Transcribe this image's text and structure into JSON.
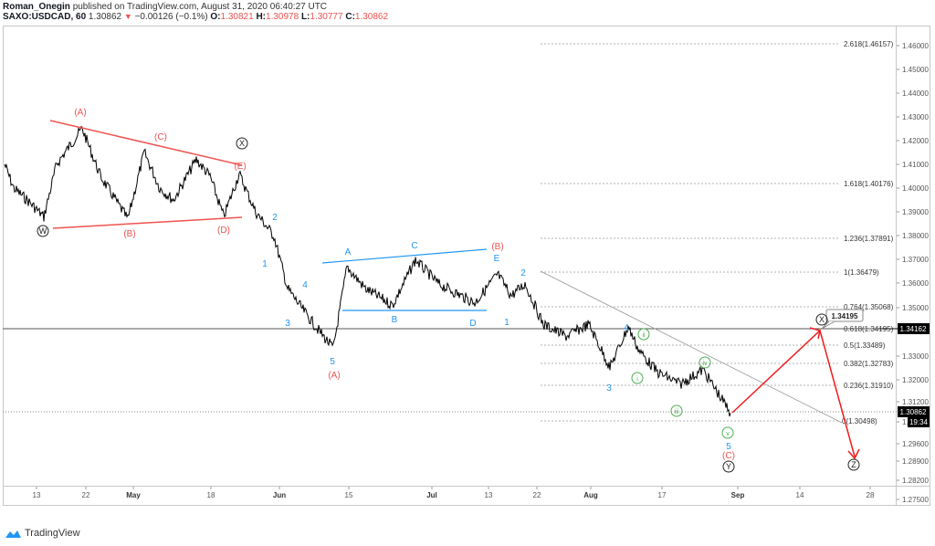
{
  "header": {
    "author": "Roman_Onegin",
    "published_text": "published on TradingView.com, August 31, 2020 06:40:27 UTC",
    "symbol": "SAXO:USDCAD, 60",
    "last": "1.30862",
    "change": "−0.00126 (−0.1%)",
    "o_label": "O:",
    "o": "1.30821",
    "h_label": "H:",
    "h": "1.30978",
    "l_label": "L:",
    "l": "1.30777",
    "c_label": "C:",
    "c": "1.30862"
  },
  "footer": {
    "brand": "TradingView",
    "icon": "tradingview-cloud-icon"
  },
  "colors": {
    "red": "#ef5350",
    "blue": "#2196f3",
    "green": "#4caf50",
    "black": "#000000",
    "grid": "#cccccc"
  },
  "chart_data": {
    "type": "line",
    "title": "SAXO:USDCAD, 60",
    "xlabel": "",
    "ylabel": "",
    "x_ticks": [
      "13",
      "22",
      "May",
      "18",
      "Jun",
      "15",
      "Jul",
      "13",
      "22",
      "Aug",
      "17",
      "Sep",
      "14",
      "28"
    ],
    "y_ticks": [
      "1.46000",
      "1.45000",
      "1.44000",
      "1.43000",
      "1.42000",
      "1.41000",
      "1.40000",
      "1.39000",
      "1.38000",
      "1.37000",
      "1.36000",
      "1.35000",
      "1.34000",
      "1.33000",
      "1.32000",
      "1.31200",
      "1.30400",
      "1.29600",
      "1.28900",
      "1.28200",
      "1.27500"
    ],
    "ylim": [
      1.272,
      1.468
    ],
    "current_price_label": "1.34162",
    "last_price_label": "1.30862",
    "countdown_label": "19:34",
    "callout_label": "1.34195",
    "fib_levels": [
      {
        "label": "2.618(1.46157)",
        "price": 1.46157
      },
      {
        "label": "1.618(1.40176)",
        "price": 1.40176
      },
      {
        "label": "1.236(1.37891)",
        "price": 1.37891
      },
      {
        "label": "1(1.36479)",
        "price": 1.36479
      },
      {
        "label": "0.764(1.35068)",
        "price": 1.35068
      },
      {
        "label": "0.618(1.34195)",
        "price": 1.34195
      },
      {
        "label": "0.5(1.33489)",
        "price": 1.33489
      },
      {
        "label": "0.382(1.32783)",
        "price": 1.32783
      },
      {
        "label": "0.236(1.31910)",
        "price": 1.3191
      },
      {
        "label": "0(1.30498)",
        "price": 1.30498
      }
    ],
    "price_path_approx": [
      {
        "x": 5,
        "y": 1.41
      },
      {
        "x": 15,
        "y": 1.4
      },
      {
        "x": 30,
        "y": 1.395
      },
      {
        "x": 48,
        "y": 1.388
      },
      {
        "x": 62,
        "y": 1.41
      },
      {
        "x": 90,
        "y": 1.425
      },
      {
        "x": 110,
        "y": 1.405
      },
      {
        "x": 140,
        "y": 1.387
      },
      {
        "x": 158,
        "y": 1.415
      },
      {
        "x": 175,
        "y": 1.4
      },
      {
        "x": 190,
        "y": 1.395
      },
      {
        "x": 215,
        "y": 1.412
      },
      {
        "x": 230,
        "y": 1.405
      },
      {
        "x": 245,
        "y": 1.388
      },
      {
        "x": 262,
        "y": 1.406
      },
      {
        "x": 280,
        "y": 1.39
      },
      {
        "x": 300,
        "y": 1.38
      },
      {
        "x": 315,
        "y": 1.358
      },
      {
        "x": 330,
        "y": 1.35
      },
      {
        "x": 350,
        "y": 1.34
      },
      {
        "x": 365,
        "y": 1.333
      },
      {
        "x": 380,
        "y": 1.367
      },
      {
        "x": 400,
        "y": 1.358
      },
      {
        "x": 430,
        "y": 1.351
      },
      {
        "x": 455,
        "y": 1.37
      },
      {
        "x": 480,
        "y": 1.36
      },
      {
        "x": 520,
        "y": 1.352
      },
      {
        "x": 545,
        "y": 1.364
      },
      {
        "x": 560,
        "y": 1.355
      },
      {
        "x": 575,
        "y": 1.36
      },
      {
        "x": 595,
        "y": 1.343
      },
      {
        "x": 620,
        "y": 1.338
      },
      {
        "x": 645,
        "y": 1.343
      },
      {
        "x": 668,
        "y": 1.325
      },
      {
        "x": 688,
        "y": 1.342
      },
      {
        "x": 700,
        "y": 1.332
      },
      {
        "x": 720,
        "y": 1.323
      },
      {
        "x": 745,
        "y": 1.318
      },
      {
        "x": 770,
        "y": 1.324
      },
      {
        "x": 800,
        "y": 1.306
      }
    ],
    "annotations": [
      {
        "text": "(A)",
        "color": "red"
      },
      {
        "text": "(B)",
        "color": "red"
      },
      {
        "text": "(C)",
        "color": "red"
      },
      {
        "text": "(D)",
        "color": "red"
      },
      {
        "text": "(E)",
        "color": "red"
      },
      {
        "text": "W",
        "color": "black",
        "circled": true
      },
      {
        "text": "X",
        "color": "black",
        "circled": true
      },
      {
        "text": "Y",
        "color": "black",
        "circled": true
      },
      {
        "text": "Z",
        "color": "black",
        "circled": true
      },
      {
        "text": "1",
        "color": "blue"
      },
      {
        "text": "2",
        "color": "blue"
      },
      {
        "text": "3",
        "color": "blue"
      },
      {
        "text": "4",
        "color": "blue"
      },
      {
        "text": "5",
        "color": "blue"
      },
      {
        "text": "A",
        "color": "blue"
      },
      {
        "text": "B",
        "color": "blue"
      },
      {
        "text": "C",
        "color": "blue"
      },
      {
        "text": "D",
        "color": "blue"
      },
      {
        "text": "E",
        "color": "blue"
      },
      {
        "text": "i",
        "color": "green",
        "circled": true
      },
      {
        "text": "ii",
        "color": "green",
        "circled": true
      },
      {
        "text": "iii",
        "color": "green",
        "circled": true
      },
      {
        "text": "iv",
        "color": "green",
        "circled": true
      },
      {
        "text": "v",
        "color": "green",
        "circled": true
      }
    ]
  },
  "labels": {
    "A_red": "(A)",
    "B_red": "(B)",
    "C_red": "(C)",
    "D_red": "(D)",
    "E_red": "(E)",
    "A_red2": "(A)",
    "B_red2": "(B)",
    "C_red2": "(C)",
    "W": "W",
    "X": "X",
    "Y": "Y",
    "Z": "Z",
    "b1": "1",
    "b2": "2",
    "b3": "3",
    "b4": "4",
    "b5": "5",
    "bA": "A",
    "bB": "B",
    "bC": "C",
    "bD": "D",
    "bE": "E",
    "c1": "1",
    "c2": "2",
    "c3": "3",
    "c4": "4",
    "c5": "5",
    "gi": "i",
    "gii": "ii",
    "giii": "iii",
    "giv": "iv",
    "gv": "v"
  }
}
